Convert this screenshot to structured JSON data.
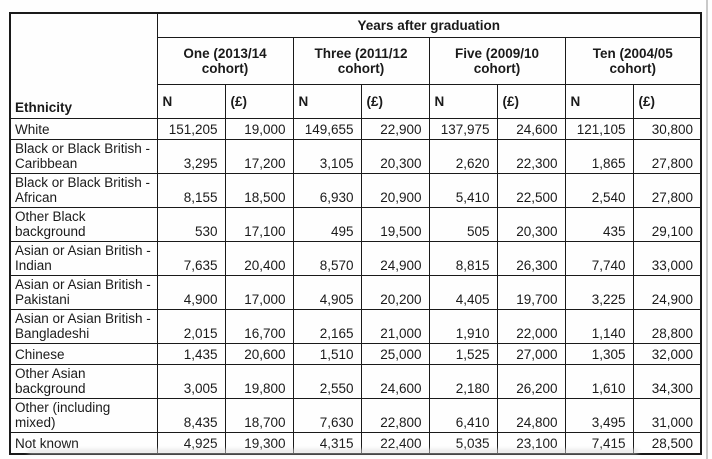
{
  "colors": {
    "text": "#1a1a1a",
    "border": "#1a1a1a",
    "background": "#fefefe"
  },
  "table": {
    "title": "Years after graduation",
    "ethnicity_header": "Ethnicity",
    "cohorts": [
      "One (2013/14 cohort)",
      "Three (2011/12 cohort)",
      "Five (2009/10 cohort)",
      "Ten (2004/05 cohort)"
    ],
    "sub_headers": {
      "n": "N",
      "earnings": "(£)"
    },
    "rows": [
      {
        "ethnicity": "White",
        "values": [
          "151,205",
          "19,000",
          "149,655",
          "22,900",
          "137,975",
          "24,600",
          "121,105",
          "30,800"
        ]
      },
      {
        "ethnicity": "Black or Black British - Caribbean",
        "values": [
          "3,295",
          "17,200",
          "3,105",
          "20,300",
          "2,620",
          "22,300",
          "1,865",
          "27,800"
        ]
      },
      {
        "ethnicity": "Black or Black British - African",
        "values": [
          "8,155",
          "18,500",
          "6,930",
          "20,900",
          "5,410",
          "22,500",
          "2,540",
          "27,800"
        ]
      },
      {
        "ethnicity": "Other Black background",
        "values": [
          "530",
          "17,100",
          "495",
          "19,500",
          "505",
          "20,300",
          "435",
          "29,100"
        ]
      },
      {
        "ethnicity": "Asian or Asian British - Indian",
        "values": [
          "7,635",
          "20,400",
          "8,570",
          "24,900",
          "8,815",
          "26,300",
          "7,740",
          "33,000"
        ]
      },
      {
        "ethnicity": "Asian or Asian British - Pakistani",
        "values": [
          "4,900",
          "17,000",
          "4,905",
          "20,200",
          "4,405",
          "19,700",
          "3,225",
          "24,900"
        ]
      },
      {
        "ethnicity": "Asian or Asian British - Bangladeshi",
        "values": [
          "2,015",
          "16,700",
          "2,165",
          "21,000",
          "1,910",
          "22,000",
          "1,140",
          "28,800"
        ]
      },
      {
        "ethnicity": "Chinese",
        "values": [
          "1,435",
          "20,600",
          "1,510",
          "25,000",
          "1,525",
          "27,000",
          "1,305",
          "32,000"
        ]
      },
      {
        "ethnicity": "Other Asian background",
        "values": [
          "3,005",
          "19,800",
          "2,550",
          "24,600",
          "2,180",
          "26,200",
          "1,610",
          "34,300"
        ]
      },
      {
        "ethnicity": "Other (including mixed)",
        "values": [
          "8,435",
          "18,700",
          "7,630",
          "22,800",
          "6,410",
          "24,800",
          "3,495",
          "31,000"
        ]
      },
      {
        "ethnicity": "Not known",
        "values": [
          "4,925",
          "19,300",
          "4,315",
          "22,400",
          "5,035",
          "23,100",
          "7,415",
          "28,500"
        ]
      }
    ]
  }
}
